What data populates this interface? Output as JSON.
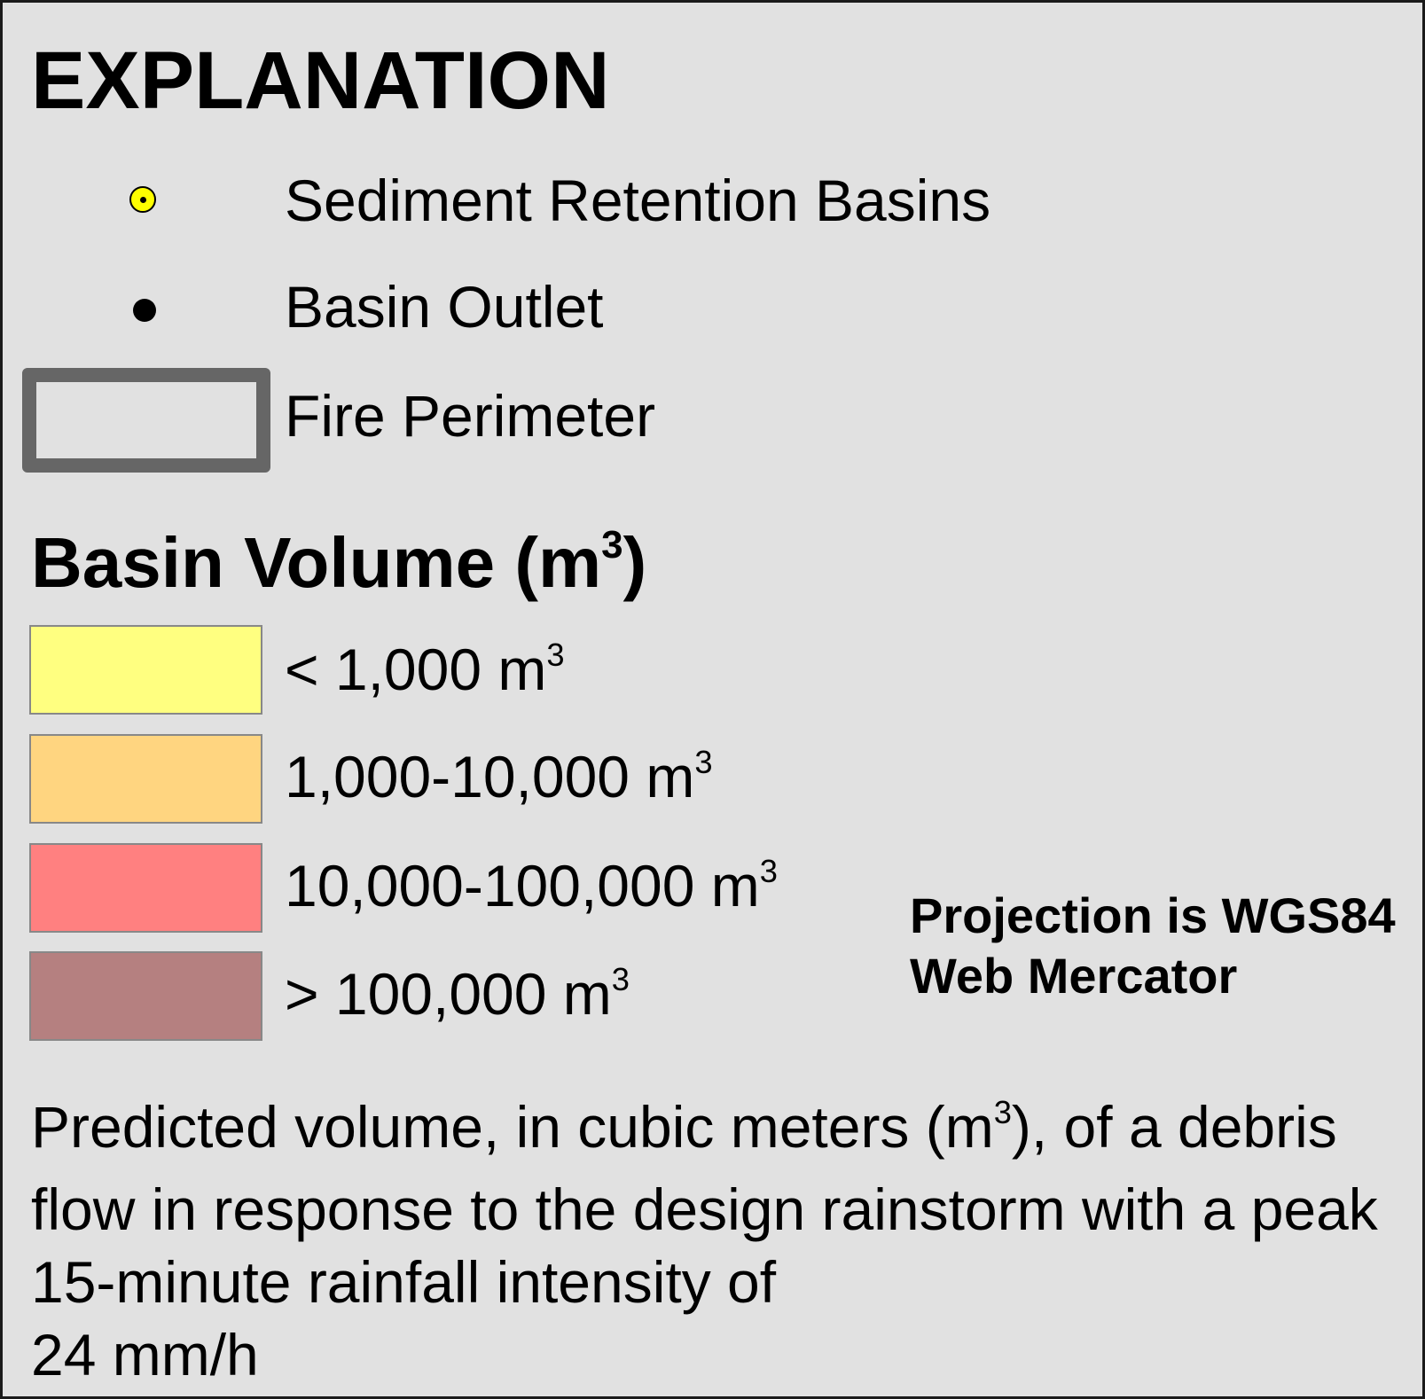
{
  "legend": {
    "title": "EXPLANATION",
    "items": [
      {
        "label": "Sediment Retention Basins",
        "icon": "sediment-retention-basin-icon",
        "fill": "#ffff00"
      },
      {
        "label": "Basin Outlet",
        "icon": "basin-outlet-icon",
        "fill": "#000000"
      },
      {
        "label": "Fire Perimeter",
        "icon": "fire-perimeter-icon",
        "stroke": "#666666"
      }
    ]
  },
  "volume": {
    "title_text": "Basin Volume (m",
    "title_sup": "3",
    "title_close": ")",
    "classes": [
      {
        "label": "< 1,000 m",
        "sup": "3",
        "color": "#ffff80"
      },
      {
        "label": "1,000-10,000 m",
        "sup": "3",
        "color": "#ffd580"
      },
      {
        "label": "10,000-100,000 m",
        "sup": "3",
        "color": "#ff8080"
      },
      {
        "label": "> 100,000 m",
        "sup": "3",
        "color": "#b58080"
      }
    ]
  },
  "projection": {
    "line1": "Projection is WGS84",
    "line2": "Web Mercator"
  },
  "note": {
    "part1": "Predicted volume, in cubic meters (m",
    "sup": "3",
    "part2": "), of a debris flow in response to the design rainstorm with a peak 15-minute rainfall intensity of",
    "part3": "24 mm/h"
  }
}
